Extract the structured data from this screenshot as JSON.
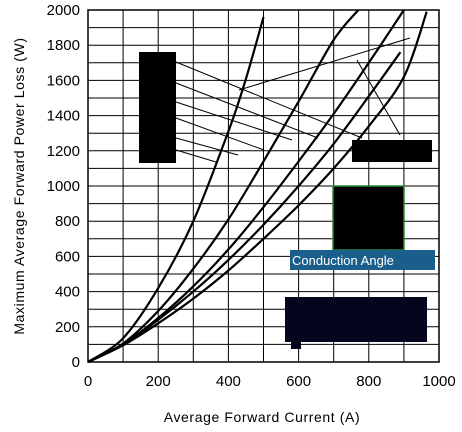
{
  "chart_data": {
    "type": "line",
    "title": "",
    "xlabel": "Average Forward Current (A)",
    "ylabel": "Maximum Average Forward Power Loss (W)",
    "xlim": [
      0,
      1000
    ],
    "ylim": [
      0,
      2000
    ],
    "x_ticks": [
      "0",
      "200",
      "400",
      "600",
      "800",
      "1000"
    ],
    "y_ticks": [
      "0",
      "200",
      "400",
      "600",
      "800",
      "1000",
      "1200",
      "1400",
      "1600",
      "1800",
      "2000"
    ],
    "grid": true,
    "annotation": "Conduction Angle",
    "series": [
      {
        "x": [
          0,
          100,
          200,
          300,
          400,
          450,
          500
        ],
        "y": [
          0,
          135,
          420,
          800,
          1310,
          1610,
          1960
        ]
      },
      {
        "x": [
          0,
          100,
          200,
          300,
          400,
          500,
          600,
          700,
          770
        ],
        "y": [
          0,
          105,
          290,
          530,
          810,
          1140,
          1480,
          1830,
          2000
        ]
      },
      {
        "x": [
          0,
          100,
          200,
          300,
          400,
          500,
          600,
          700,
          800,
          900
        ],
        "y": [
          0,
          100,
          250,
          430,
          640,
          880,
          1140,
          1410,
          1700,
          2000
        ]
      },
      {
        "x": [
          0,
          100,
          200,
          300,
          400,
          500,
          600,
          700,
          800,
          890
        ],
        "y": [
          0,
          100,
          240,
          400,
          580,
          780,
          1000,
          1240,
          1510,
          1760
        ]
      },
      {
        "x": [
          0,
          100,
          200,
          300,
          400,
          500,
          600,
          700,
          800,
          900,
          965
        ],
        "y": [
          0,
          95,
          220,
          360,
          520,
          700,
          890,
          1100,
          1340,
          1620,
          1990
        ]
      }
    ],
    "colors": {
      "curve": "#000000",
      "grid": "#000000",
      "caption_bg": "#1a5e8c",
      "box_border": "#2e8b2e",
      "redaction": "#000000",
      "dark_box": "#05051e"
    }
  }
}
